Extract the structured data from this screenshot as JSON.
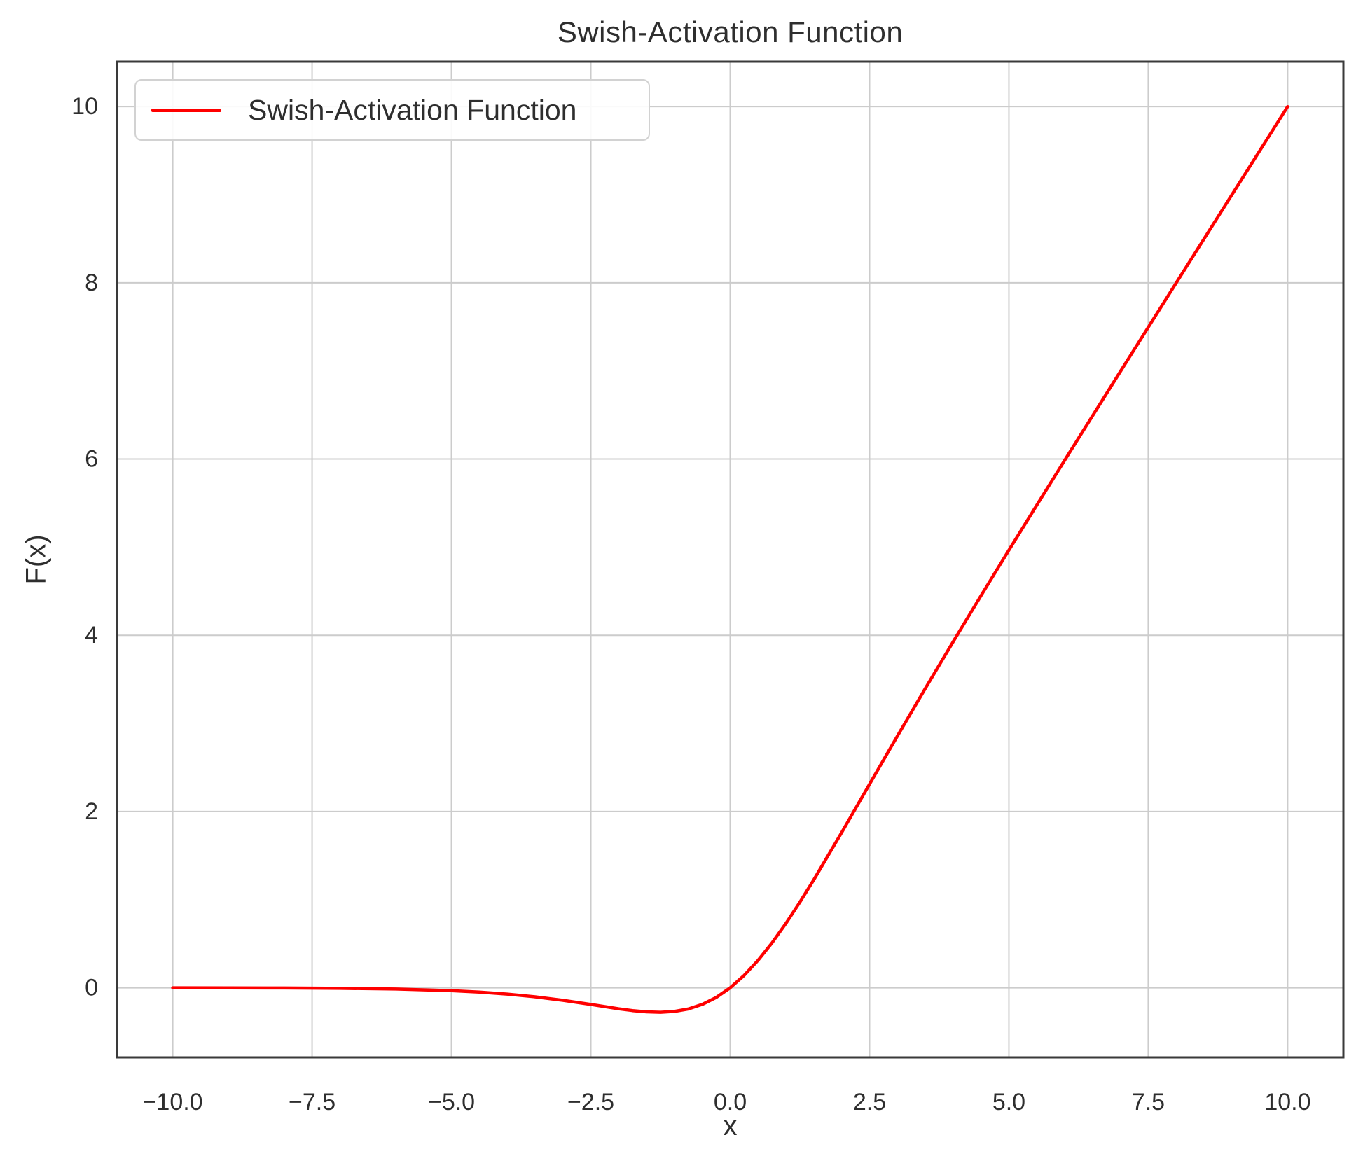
{
  "figure": {
    "background": "#ffffff"
  },
  "chart_data": {
    "type": "line",
    "title": "Swish-Activation Function",
    "xlabel": "x",
    "ylabel": "F(x)",
    "xlim": [
      -11,
      11
    ],
    "ylim": [
      -0.79,
      10.51
    ],
    "grid": true,
    "legend": {
      "position": "upper left",
      "entries": [
        {
          "label": "Swish-Activation Function",
          "color": "#ff0000"
        }
      ]
    },
    "xticks": {
      "values": [
        -10,
        -7.5,
        -5,
        -2.5,
        0,
        2.5,
        5,
        7.5,
        10
      ],
      "labels": [
        "−10.0",
        "−7.5",
        "−5.0",
        "−2.5",
        "0.0",
        "2.5",
        "5.0",
        "7.5",
        "10.0"
      ]
    },
    "yticks": {
      "values": [
        0,
        2,
        4,
        6,
        8,
        10
      ],
      "labels": [
        "0",
        "2",
        "4",
        "6",
        "8",
        "10"
      ]
    },
    "series": [
      {
        "name": "Swish-Activation Function",
        "color": "#ff0000",
        "line_width": 4.5,
        "x": [
          -10,
          -9,
          -8,
          -7,
          -6,
          -5,
          -4.5,
          -4,
          -3.5,
          -3,
          -2.5,
          -2,
          -1.75,
          -1.5,
          -1.25,
          -1,
          -0.75,
          -0.5,
          -0.25,
          0,
          0.25,
          0.5,
          0.75,
          1,
          1.25,
          1.5,
          2,
          2.5,
          3,
          3.5,
          4,
          4.5,
          5,
          5.5,
          6,
          6.5,
          7,
          7.5,
          8,
          8.5,
          9,
          9.5,
          10
        ],
        "y": [
          -0.0005,
          -0.0011,
          -0.0027,
          -0.0064,
          -0.0148,
          -0.0335,
          -0.0494,
          -0.0719,
          -0.1026,
          -0.1423,
          -0.1896,
          -0.2384,
          -0.2591,
          -0.2736,
          -0.2784,
          -0.2689,
          -0.2406,
          -0.1888,
          -0.1095,
          0,
          0.1405,
          0.3112,
          0.5094,
          0.7311,
          0.9716,
          1.2264,
          1.7616,
          2.3104,
          2.8577,
          3.3974,
          3.9281,
          4.4506,
          4.9665,
          5.4776,
          5.9852,
          6.4902,
          6.9936,
          7.4959,
          7.9973,
          8.4983,
          8.9989,
          9.4993,
          9.9995
        ]
      }
    ],
    "colors": {
      "grid": "#cccccc",
      "spine": "#3a3a3a",
      "text": "#2e2e2e",
      "background": "#ffffff"
    },
    "tick_font_size": 34
  }
}
